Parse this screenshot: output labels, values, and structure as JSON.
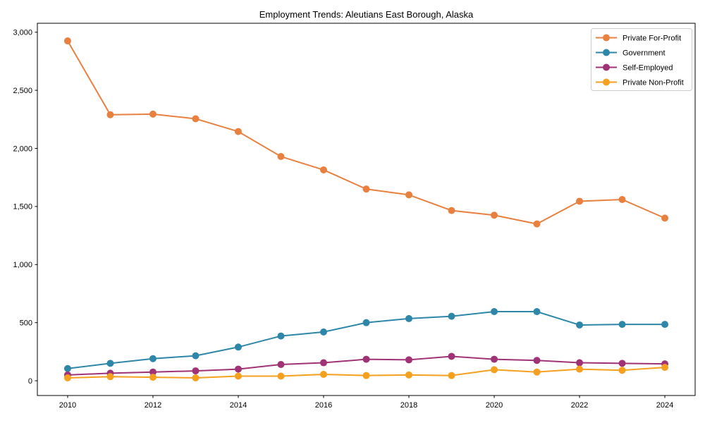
{
  "figure": {
    "background": "#ffffff",
    "spine_color": "#000000",
    "legend_border_color": "#cccccc"
  },
  "chart_data": {
    "type": "line",
    "title": "Employment Trends: Aleutians East Borough, Alaska",
    "xlabel": "",
    "ylabel": "",
    "grid": false,
    "legend_position": "upper right",
    "marker": "circle",
    "x": [
      2010,
      2011,
      2012,
      2013,
      2014,
      2015,
      2016,
      2017,
      2018,
      2019,
      2020,
      2021,
      2022,
      2023,
      2024
    ],
    "series": [
      {
        "name": "Private For-Profit",
        "color": "#e8803f",
        "values": [
          2925,
          2290,
          2295,
          2255,
          2145,
          1930,
          1815,
          1650,
          1600,
          1465,
          1425,
          1350,
          1545,
          1560,
          1400
        ]
      },
      {
        "name": "Government",
        "color": "#2e87a8",
        "values": [
          105,
          150,
          190,
          215,
          290,
          385,
          420,
          500,
          535,
          555,
          595,
          595,
          480,
          485,
          485
        ]
      },
      {
        "name": "Self-Employed",
        "color": "#a03376",
        "values": [
          50,
          65,
          75,
          85,
          100,
          140,
          155,
          185,
          180,
          210,
          185,
          175,
          155,
          150,
          145
        ]
      },
      {
        "name": "Private Non-Profit",
        "color": "#f5a01e",
        "values": [
          25,
          35,
          30,
          25,
          40,
          40,
          55,
          45,
          50,
          45,
          95,
          75,
          100,
          90,
          115
        ]
      }
    ],
    "x_tick_labels": [
      "2010",
      "2012",
      "2014",
      "2016",
      "2018",
      "2020",
      "2022",
      "2024"
    ],
    "x_tick_values": [
      2010,
      2012,
      2014,
      2016,
      2018,
      2020,
      2022,
      2024
    ],
    "y_tick_labels": [
      "0",
      "500",
      "1,000",
      "1,500",
      "2,000",
      "2,500",
      "3,000"
    ],
    "y_tick_values": [
      0,
      500,
      1000,
      1500,
      2000,
      2500,
      3000
    ],
    "xlim": [
      2009.29,
      2024.71
    ],
    "ylim": [
      -127,
      3077
    ]
  }
}
